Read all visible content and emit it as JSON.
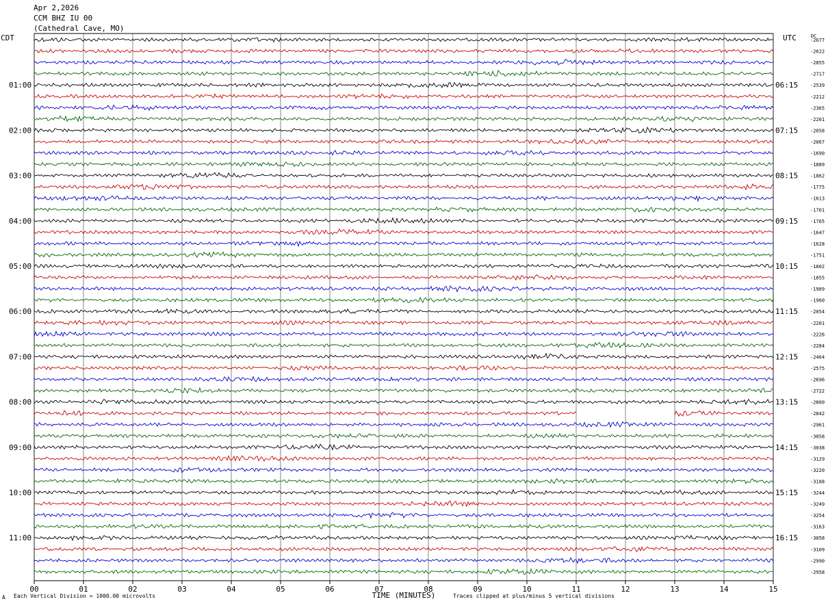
{
  "header": {
    "date": "Apr 2,2026",
    "station": "CCM BHZ IU 00",
    "location": "(Cathedral Cave, MO)"
  },
  "left_tz": "CDT",
  "right_tz": "UTC",
  "dc_label": "DC",
  "footer": {
    "scale_note": "Each Vertical Division = 1000.00 microvolts",
    "clip_note": "Traces clipped at plus/minus 5 vertical divisions",
    "mark": "A"
  },
  "chart_data": {
    "type": "line",
    "title": "",
    "xlabel": "TIME (MINUTES)",
    "xlim": [
      0,
      15
    ],
    "x_ticks": [
      "00",
      "01",
      "02",
      "03",
      "04",
      "05",
      "06",
      "07",
      "08",
      "09",
      "10",
      "11",
      "12",
      "13",
      "14",
      "15"
    ],
    "cdt_hour_labels": [
      "01:00",
      "02:00",
      "03:00",
      "04:00",
      "05:00",
      "06:00",
      "07:00",
      "08:00",
      "09:00",
      "10:00",
      "11:00"
    ],
    "utc_hour_labels": [
      "06:15",
      "07:15",
      "08:15",
      "09:15",
      "10:15",
      "11:15",
      "12:15",
      "13:15",
      "14:15",
      "15:15",
      "16:15"
    ],
    "trace_colors": [
      "#000000",
      "#cc0000",
      "#0000cc",
      "#006600"
    ],
    "traces_per_hour": 4,
    "minutes_per_trace": 15,
    "gap": {
      "trace_index": 33,
      "from_minute": 11,
      "to_minute": 13
    },
    "dc_offsets": [
      "-2677",
      "-2622",
      "-2855",
      "-2717",
      "-2539",
      "-2212",
      "-2365",
      "-2201",
      "-2058",
      "-2067",
      "-1690",
      "-1889",
      "-1862",
      "-1775",
      "-1613",
      "-1701",
      "-1765",
      "-1647",
      "-1628",
      "-1751",
      "-1802",
      "-1855",
      "-1909",
      "-1960",
      "-2054",
      "-2201",
      "-2226",
      "-2284",
      "-2464",
      "-2575",
      "-2696",
      "-2722",
      "-2800",
      "-2842",
      "-2961",
      "-3058",
      "-3038",
      "-3129",
      "-3220",
      "-3188",
      "-3244",
      "-3249",
      "-3254",
      "-3163",
      "-3058",
      "-3109",
      "-2990",
      "-2958"
    ]
  }
}
